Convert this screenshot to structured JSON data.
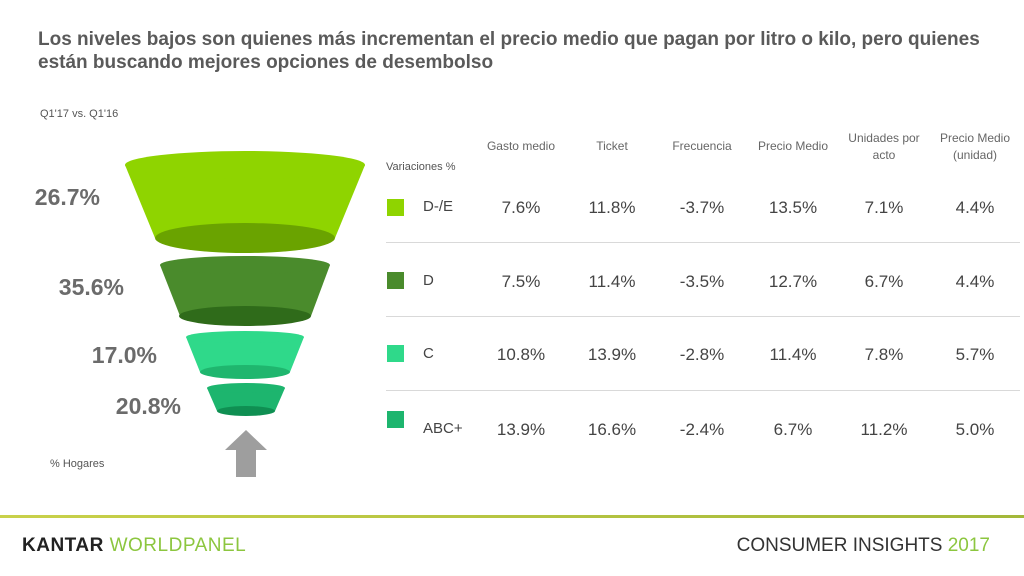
{
  "title": "Los niveles bajos son quienes más incrementan el precio medio que pagan por litro o kilo, pero quienes están buscando mejores opciones de desembolso",
  "period": "Q1'17 vs. Q1'16",
  "hogares_label": "% Hogares",
  "variaciones_label": "Variaciones %",
  "funnel": [
    {
      "segment": "D-/E",
      "pct": "26.7%",
      "color": "#8fd400"
    },
    {
      "segment": "D",
      "pct": "35.6%",
      "color": "#4a8b2c"
    },
    {
      "segment": "C",
      "pct": "17.0%",
      "color": "#2fd98a"
    },
    {
      "segment": "ABC+",
      "pct": "20.8%",
      "color": "#1db56e"
    }
  ],
  "columns": [
    "Gasto medio",
    "Ticket",
    "Frecuencia",
    "Precio Medio",
    "Unidades por acto",
    "Precio Medio (unidad)"
  ],
  "rows": [
    {
      "segment": "D-/E",
      "color": "#8fd400",
      "values": [
        "7.6%",
        "11.8%",
        "-3.7%",
        "13.5%",
        "7.1%",
        "4.4%"
      ]
    },
    {
      "segment": "D",
      "color": "#4a8b2c",
      "values": [
        "7.5%",
        "11.4%",
        "-3.5%",
        "12.7%",
        "6.7%",
        "4.4%"
      ]
    },
    {
      "segment": "C",
      "color": "#2fd98a",
      "values": [
        "10.8%",
        "13.9%",
        "-2.8%",
        "11.4%",
        "7.8%",
        "5.7%"
      ]
    },
    {
      "segment": "ABC+",
      "color": "#1db56e",
      "values": [
        "13.9%",
        "16.6%",
        "-2.4%",
        "6.7%",
        "11.2%",
        "5.0%"
      ]
    }
  ],
  "footer": {
    "brand_a": "KANTAR ",
    "brand_b": "WORLDPANEL",
    "insights": "CONSUMER INSIGHTS ",
    "year": "2017"
  }
}
